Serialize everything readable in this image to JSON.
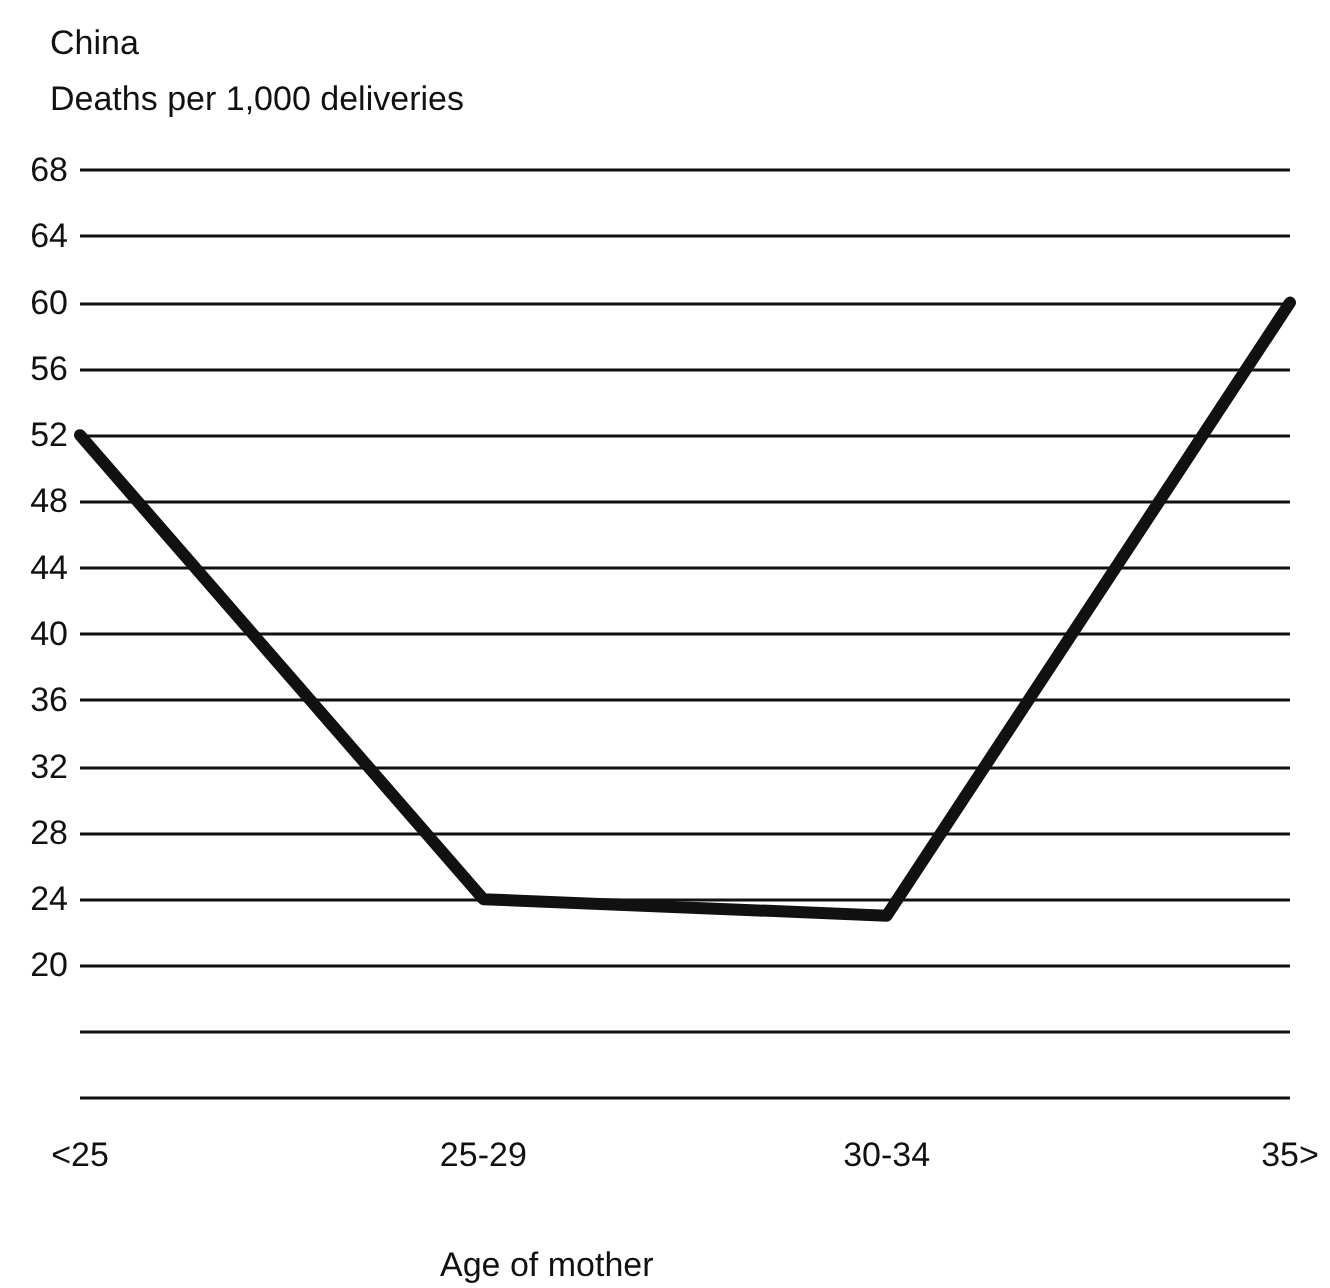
{
  "chart_data": {
    "type": "line",
    "title": "China",
    "ylabel": "Deaths per 1,000 deliveries",
    "xlabel": "Age of mother",
    "categories": [
      "<25",
      "25-29",
      "30-34",
      "35>"
    ],
    "series": [
      {
        "color": "#111111",
        "values": [
          52,
          24,
          23,
          60
        ]
      }
    ],
    "ylim": [
      12,
      68
    ],
    "yticks": [
      {
        "value": 12,
        "label": null
      },
      {
        "value": 16,
        "label": null
      },
      20,
      24,
      28,
      32,
      36,
      40,
      44,
      48,
      52,
      56,
      60,
      64,
      68
    ],
    "grid": "y",
    "marker": "none",
    "line_style": "solid"
  }
}
